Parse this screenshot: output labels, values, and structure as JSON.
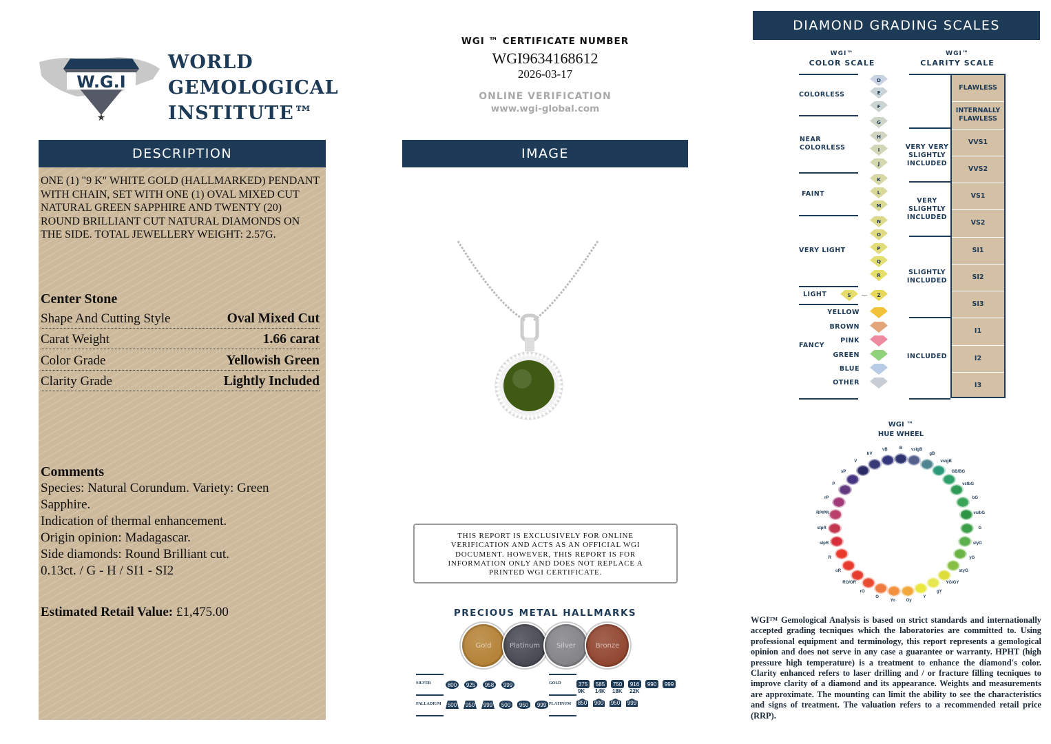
{
  "logo": {
    "seal_text": "WORLD GEMOLOGICAL INSTITUTE",
    "seal_initials": "W.G.I",
    "line1": "WORLD",
    "line2": "GEMOLOGICAL",
    "line3": "INSTITUTE™"
  },
  "certificate": {
    "label": "WGI ™ CERTIFICATE NUMBER",
    "number": "WGI9634168612",
    "date": "2026-03-17",
    "verify_label": "ONLINE VERIFICATION",
    "verify_url": "www.wgi-global.com"
  },
  "description": {
    "header": "DESCRIPTION",
    "text": "ONE (1) \"9 K\" WHITE GOLD (HALLMARKED) PENDANT WITH CHAIN, SET WITH ONE (1) OVAL MIXED CUT NATURAL GREEN SAPPHIRE AND TWENTY (20) ROUND BRILLIANT CUT NATURAL DIAMONDS ON THE SIDE. TOTAL JEWELLERY WEIGHT: 2.57g.",
    "center_stone_title": "Center Stone",
    "center_stone": [
      {
        "label": "Shape And Cutting Style",
        "value": "Oval Mixed Cut"
      },
      {
        "label": "Carat Weight",
        "value": "1.66 carat"
      },
      {
        "label": "Color Grade",
        "value": "Yellowish Green"
      },
      {
        "label": "Clarity Grade",
        "value": "Lightly Included"
      }
    ],
    "comments_title": "Comments",
    "comments": [
      "Species: Natural Corundum. Variety: Green Sapphire.",
      "Indication of thermal enhancement.",
      "Origin opinion: Madagascar.",
      "Side diamonds: Round Brilliant cut.",
      "0.13ct. / G - H / SI1 - SI2"
    ],
    "retail_label": "Estimated Retail Value:",
    "retail_value": "£1,475.00"
  },
  "image": {
    "header": "IMAGE",
    "stone_color": "#3f5a14"
  },
  "disclaimer": "THIS REPORT IS EXCLUSIVELY FOR ONLINE VERIFICATION AND ACTS AS AN OFFICIAL WGI DOCUMENT. HOWEVER, THIS REPORT IS FOR INFORMATION ONLY AND DOES NOT REPLACE A PRINTED WGI CERTIFICATE.",
  "hallmarks": {
    "title": "PRECIOUS METAL HALLMARKS",
    "medals": [
      {
        "label": "Gold",
        "color": "#b07a2a"
      },
      {
        "label": "Platinum",
        "color": "#3c3d48"
      },
      {
        "label": "Silver",
        "color": "#7c7c80"
      },
      {
        "label": "Bronze",
        "color": "#8a3a22"
      }
    ],
    "silver_label": "SILVER",
    "silver": [
      "800",
      "925",
      "958",
      "999"
    ],
    "palladium_label": "PALLADIUM",
    "palladium": [
      "500",
      "950",
      "999",
      "500",
      "950",
      "999"
    ],
    "gold_label": "GOLD",
    "gold": [
      "375",
      "585",
      "750",
      "916",
      "990",
      "999"
    ],
    "gold_karats": [
      "9K",
      "14K",
      "18K",
      "22K"
    ],
    "platinum_label": "PLATINUM",
    "platinum": [
      "850",
      "900",
      "950",
      "999"
    ]
  },
  "grading": {
    "header": "DIAMOND GRADING  SCALES",
    "color_scale_title1": "WGI™",
    "color_scale_title2": "COLOR SCALE",
    "clarity_scale_title1": "WGI™",
    "clarity_scale_title2": "CLARITY SCALE",
    "color_groups": [
      "COLORLESS",
      "NEAR\nCOLORLESS",
      "FAINT",
      "VERY LIGHT",
      "LIGHT",
      "FANCY"
    ],
    "color_letters": [
      "D",
      "E",
      "F",
      "G",
      "H",
      "I",
      "J",
      "K",
      "L",
      "M",
      "N",
      "O",
      "P",
      "Q",
      "R"
    ],
    "light_range": [
      "S",
      "Z"
    ],
    "fancy_colors": [
      {
        "label": "YELLOW",
        "color": "#f2c23a"
      },
      {
        "label": "BROWN",
        "color": "#e3a57a"
      },
      {
        "label": "PINK",
        "color": "#ee8aa0"
      },
      {
        "label": "GREEN",
        "color": "#8fd27c"
      },
      {
        "label": "BLUE",
        "color": "#b8cce6"
      },
      {
        "label": "OTHER",
        "color": "#c8ccd4"
      }
    ],
    "clarity_groups": [
      "VERY VERY\nSLIGHTLY\nINCLUDED",
      "VERY\nSLIGHTLY\nINCLUDED",
      "SLIGHTLY\nINCLUDED",
      "INCLUDED"
    ],
    "clarity_grades": [
      "FLAWLESS",
      "INTERNALLY\nFLAWLESS",
      "VVS1",
      "VVS2",
      "VS1",
      "VS2",
      "SI1",
      "SI2",
      "SI3",
      "I1",
      "I2",
      "I3"
    ]
  },
  "hue_wheel": {
    "title1": "WGI ™",
    "title2": "HUE WHEEL",
    "hues": [
      {
        "label": "B",
        "color": "#2e3470"
      },
      {
        "label": "vslgB",
        "color": "#56608f"
      },
      {
        "label": "gB",
        "color": "#4f8590"
      },
      {
        "label": "vslgB",
        "color": "#2a9a7a"
      },
      {
        "label": "GB/BG",
        "color": "#2ea06a"
      },
      {
        "label": "vstbG",
        "color": "#2e9a55"
      },
      {
        "label": "bG",
        "color": "#3aa457"
      },
      {
        "label": "vs/bG",
        "color": "#2d9444"
      },
      {
        "label": "G",
        "color": "#3ca04a"
      },
      {
        "label": "slyG",
        "color": "#5cb04c"
      },
      {
        "label": "yG",
        "color": "#6ab445"
      },
      {
        "label": "styG",
        "color": "#86bf44"
      },
      {
        "label": "YG/GY",
        "color": "#dddd3a"
      },
      {
        "label": "gY",
        "color": "#e8e650"
      },
      {
        "label": "Y",
        "color": "#eae83e"
      },
      {
        "label": "Oy",
        "color": "#f2a83a"
      },
      {
        "label": "Yo",
        "color": "#f29040"
      },
      {
        "label": "O",
        "color": "#ee7a40"
      },
      {
        "label": "rO",
        "color": "#ea4a30"
      },
      {
        "label": "RO/OR",
        "color": "#e63c2e"
      },
      {
        "label": "oR",
        "color": "#e83a2e"
      },
      {
        "label": "R",
        "color": "#ea3a2c"
      },
      {
        "label": "slpR",
        "color": "#d8303a"
      },
      {
        "label": "stpR",
        "color": "#c2364f"
      },
      {
        "label": "RP/PR",
        "color": "#b8406a"
      },
      {
        "label": "rP",
        "color": "#a03a78"
      },
      {
        "label": "P",
        "color": "#633a80"
      },
      {
        "label": "sP",
        "color": "#453580"
      },
      {
        "label": "V",
        "color": "#2c2a64"
      },
      {
        "label": "bV",
        "color": "#393a78"
      },
      {
        "label": "vB",
        "color": "#33367a"
      }
    ]
  },
  "legal": "WGI™ Gemological Analysis is based on strict standards and internationally accepted grading tecniques which the laboratories are committed to. Using professional equipment and terminology, this report represents a gemological opinion and does not serve in any case a guarantee or warranty. HPHT (high pressure high temperature) is a treatment to enhance the diamond's color. Clarity enhanced refers to laser drilling and / or fracture filling tecniques to improve clarity of a diamond and its appearance. Weights and measurements are approximate. The mounting can limit the ability to see the characteristics and signs of treatment. The valuation refers to a recommended retail price (RRP)."
}
